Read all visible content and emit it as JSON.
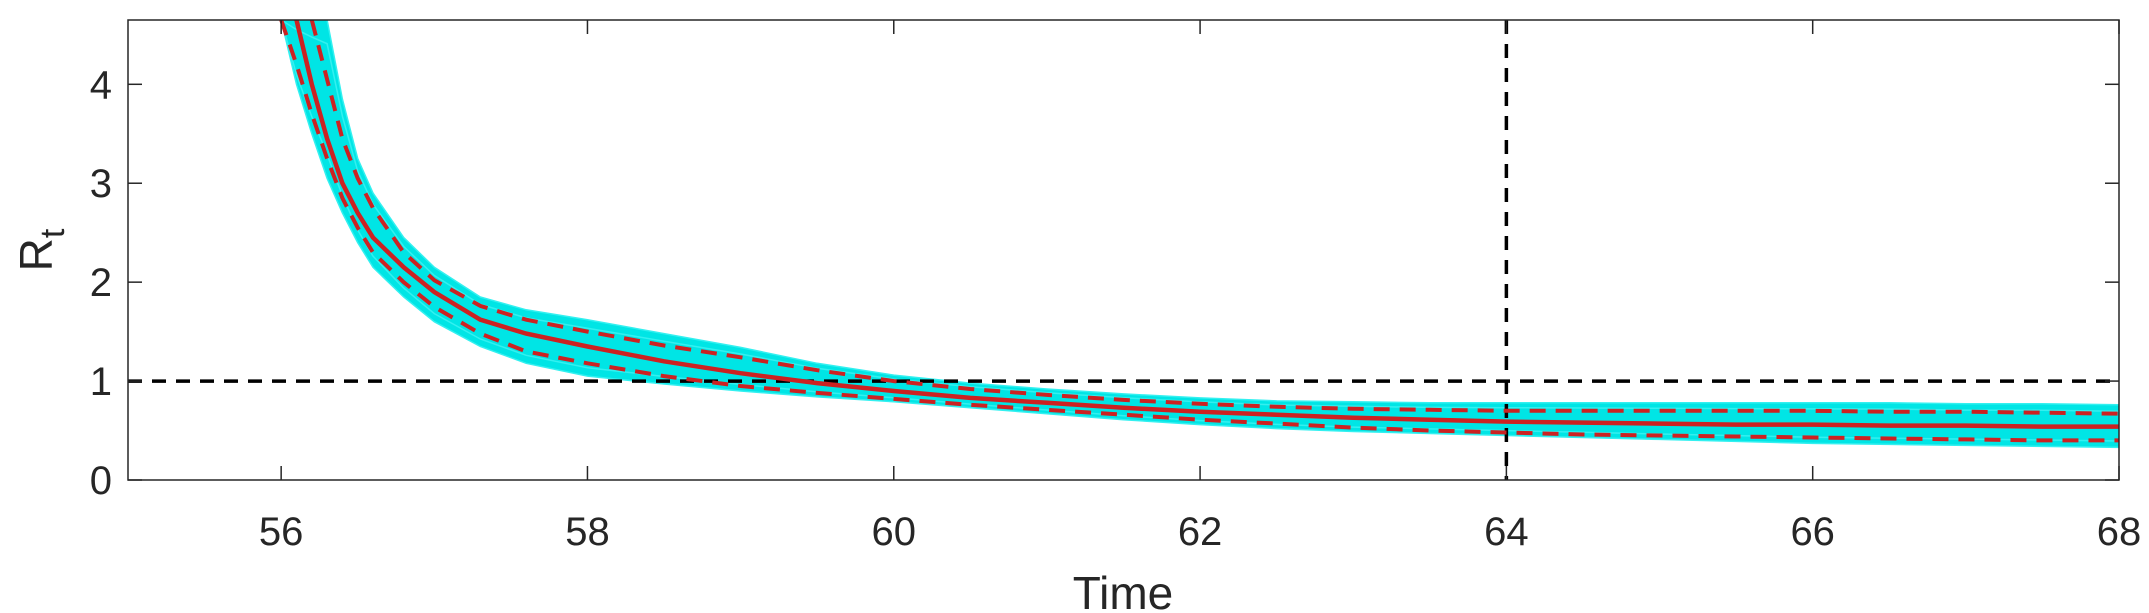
{
  "chart_data": {
    "type": "line",
    "title": "",
    "xlabel": "Time",
    "ylabel": "R",
    "ylabel_subscript": "t",
    "xlim": [
      55,
      68
    ],
    "ylim": [
      0,
      4.65
    ],
    "x_ticks": [
      "56",
      "58",
      "60",
      "62",
      "64",
      "66",
      "68"
    ],
    "y_ticks": [
      "0",
      "1",
      "2",
      "3",
      "4"
    ],
    "grid": false,
    "legend": "none",
    "colors": {
      "samples": "#00e5e5",
      "median": "#cc2222",
      "bounds": "#cc2222",
      "reference": "#000000",
      "axis": "#262626"
    },
    "reference_lines": {
      "horizontal_y": 1,
      "vertical_x": 64
    },
    "series": [
      {
        "role": "median",
        "style": "solid",
        "x": [
          56.1,
          56.2,
          56.3,
          56.4,
          56.5,
          56.6,
          56.8,
          57.0,
          57.3,
          57.6,
          58.0,
          58.5,
          59.0,
          59.5,
          60.0,
          60.5,
          61.0,
          61.5,
          62.0,
          62.5,
          63.0,
          63.5,
          64.0,
          64.5,
          65.0,
          65.5,
          66.0,
          66.5,
          67.0,
          67.5,
          68.0
        ],
        "y": [
          4.65,
          4.0,
          3.45,
          3.0,
          2.7,
          2.45,
          2.15,
          1.9,
          1.62,
          1.48,
          1.35,
          1.2,
          1.08,
          0.98,
          0.9,
          0.83,
          0.78,
          0.73,
          0.69,
          0.66,
          0.63,
          0.61,
          0.59,
          0.58,
          0.57,
          0.56,
          0.56,
          0.55,
          0.55,
          0.54,
          0.54
        ]
      },
      {
        "role": "upper-bound",
        "style": "dashed",
        "x": [
          56.2,
          56.3,
          56.4,
          56.5,
          56.6,
          56.8,
          57.0,
          57.3,
          57.6,
          58.0,
          58.5,
          59.0,
          59.5,
          60.0,
          60.5,
          61.0,
          61.5,
          62.0,
          62.5,
          63.0,
          63.5,
          64.0,
          64.5,
          65.0,
          65.5,
          66.0,
          66.5,
          67.0,
          67.5,
          68.0
        ],
        "y": [
          4.65,
          4.05,
          3.45,
          3.05,
          2.75,
          2.3,
          2.02,
          1.76,
          1.62,
          1.5,
          1.36,
          1.24,
          1.11,
          1.0,
          0.92,
          0.86,
          0.81,
          0.77,
          0.74,
          0.72,
          0.71,
          0.7,
          0.7,
          0.7,
          0.7,
          0.7,
          0.69,
          0.69,
          0.68,
          0.67
        ]
      },
      {
        "role": "lower-bound",
        "style": "dashed",
        "x": [
          56.0,
          56.1,
          56.2,
          56.3,
          56.4,
          56.5,
          56.6,
          56.8,
          57.0,
          57.3,
          57.6,
          58.0,
          58.5,
          59.0,
          59.5,
          60.0,
          60.5,
          61.0,
          61.5,
          62.0,
          62.5,
          63.0,
          63.5,
          64.0,
          64.5,
          65.0,
          65.5,
          66.0,
          66.5,
          67.0,
          67.5,
          68.0
        ],
        "y": [
          4.65,
          4.2,
          3.7,
          3.25,
          2.85,
          2.55,
          2.3,
          2.0,
          1.75,
          1.48,
          1.3,
          1.18,
          1.05,
          0.95,
          0.88,
          0.82,
          0.76,
          0.71,
          0.66,
          0.61,
          0.57,
          0.53,
          0.5,
          0.48,
          0.46,
          0.45,
          0.44,
          0.43,
          0.42,
          0.41,
          0.4,
          0.4
        ]
      },
      {
        "role": "sample-envelope-upper",
        "style": "band",
        "x": [
          56.3,
          56.4,
          56.5,
          56.6,
          56.8,
          57.0,
          57.3,
          57.6,
          58.0,
          58.5,
          59.0,
          59.5,
          60.0,
          60.5,
          61.0,
          61.5,
          62.0,
          62.5,
          63.0,
          63.5,
          64.0,
          64.5,
          65.0,
          65.5,
          66.0,
          66.5,
          67.0,
          67.5,
          68.0
        ],
        "y": [
          4.65,
          3.85,
          3.25,
          2.9,
          2.45,
          2.15,
          1.85,
          1.72,
          1.62,
          1.48,
          1.34,
          1.18,
          1.06,
          0.98,
          0.92,
          0.87,
          0.83,
          0.8,
          0.79,
          0.78,
          0.78,
          0.78,
          0.78,
          0.78,
          0.78,
          0.78,
          0.77,
          0.77,
          0.76
        ]
      },
      {
        "role": "sample-envelope-lower",
        "style": "band",
        "x": [
          56.0,
          56.1,
          56.2,
          56.3,
          56.4,
          56.5,
          56.6,
          56.8,
          57.0,
          57.3,
          57.6,
          58.0,
          58.5,
          59.0,
          59.5,
          60.0,
          60.5,
          61.0,
          61.5,
          62.0,
          62.5,
          63.0,
          63.5,
          64.0,
          64.5,
          65.0,
          65.5,
          66.0,
          66.5,
          67.0,
          67.5,
          68.0
        ],
        "y": [
          4.65,
          4.0,
          3.5,
          3.05,
          2.7,
          2.4,
          2.15,
          1.85,
          1.6,
          1.35,
          1.18,
          1.05,
          0.97,
          0.9,
          0.84,
          0.79,
          0.73,
          0.67,
          0.61,
          0.56,
          0.52,
          0.49,
          0.47,
          0.45,
          0.43,
          0.41,
          0.39,
          0.37,
          0.36,
          0.35,
          0.34,
          0.33
        ]
      }
    ]
  }
}
